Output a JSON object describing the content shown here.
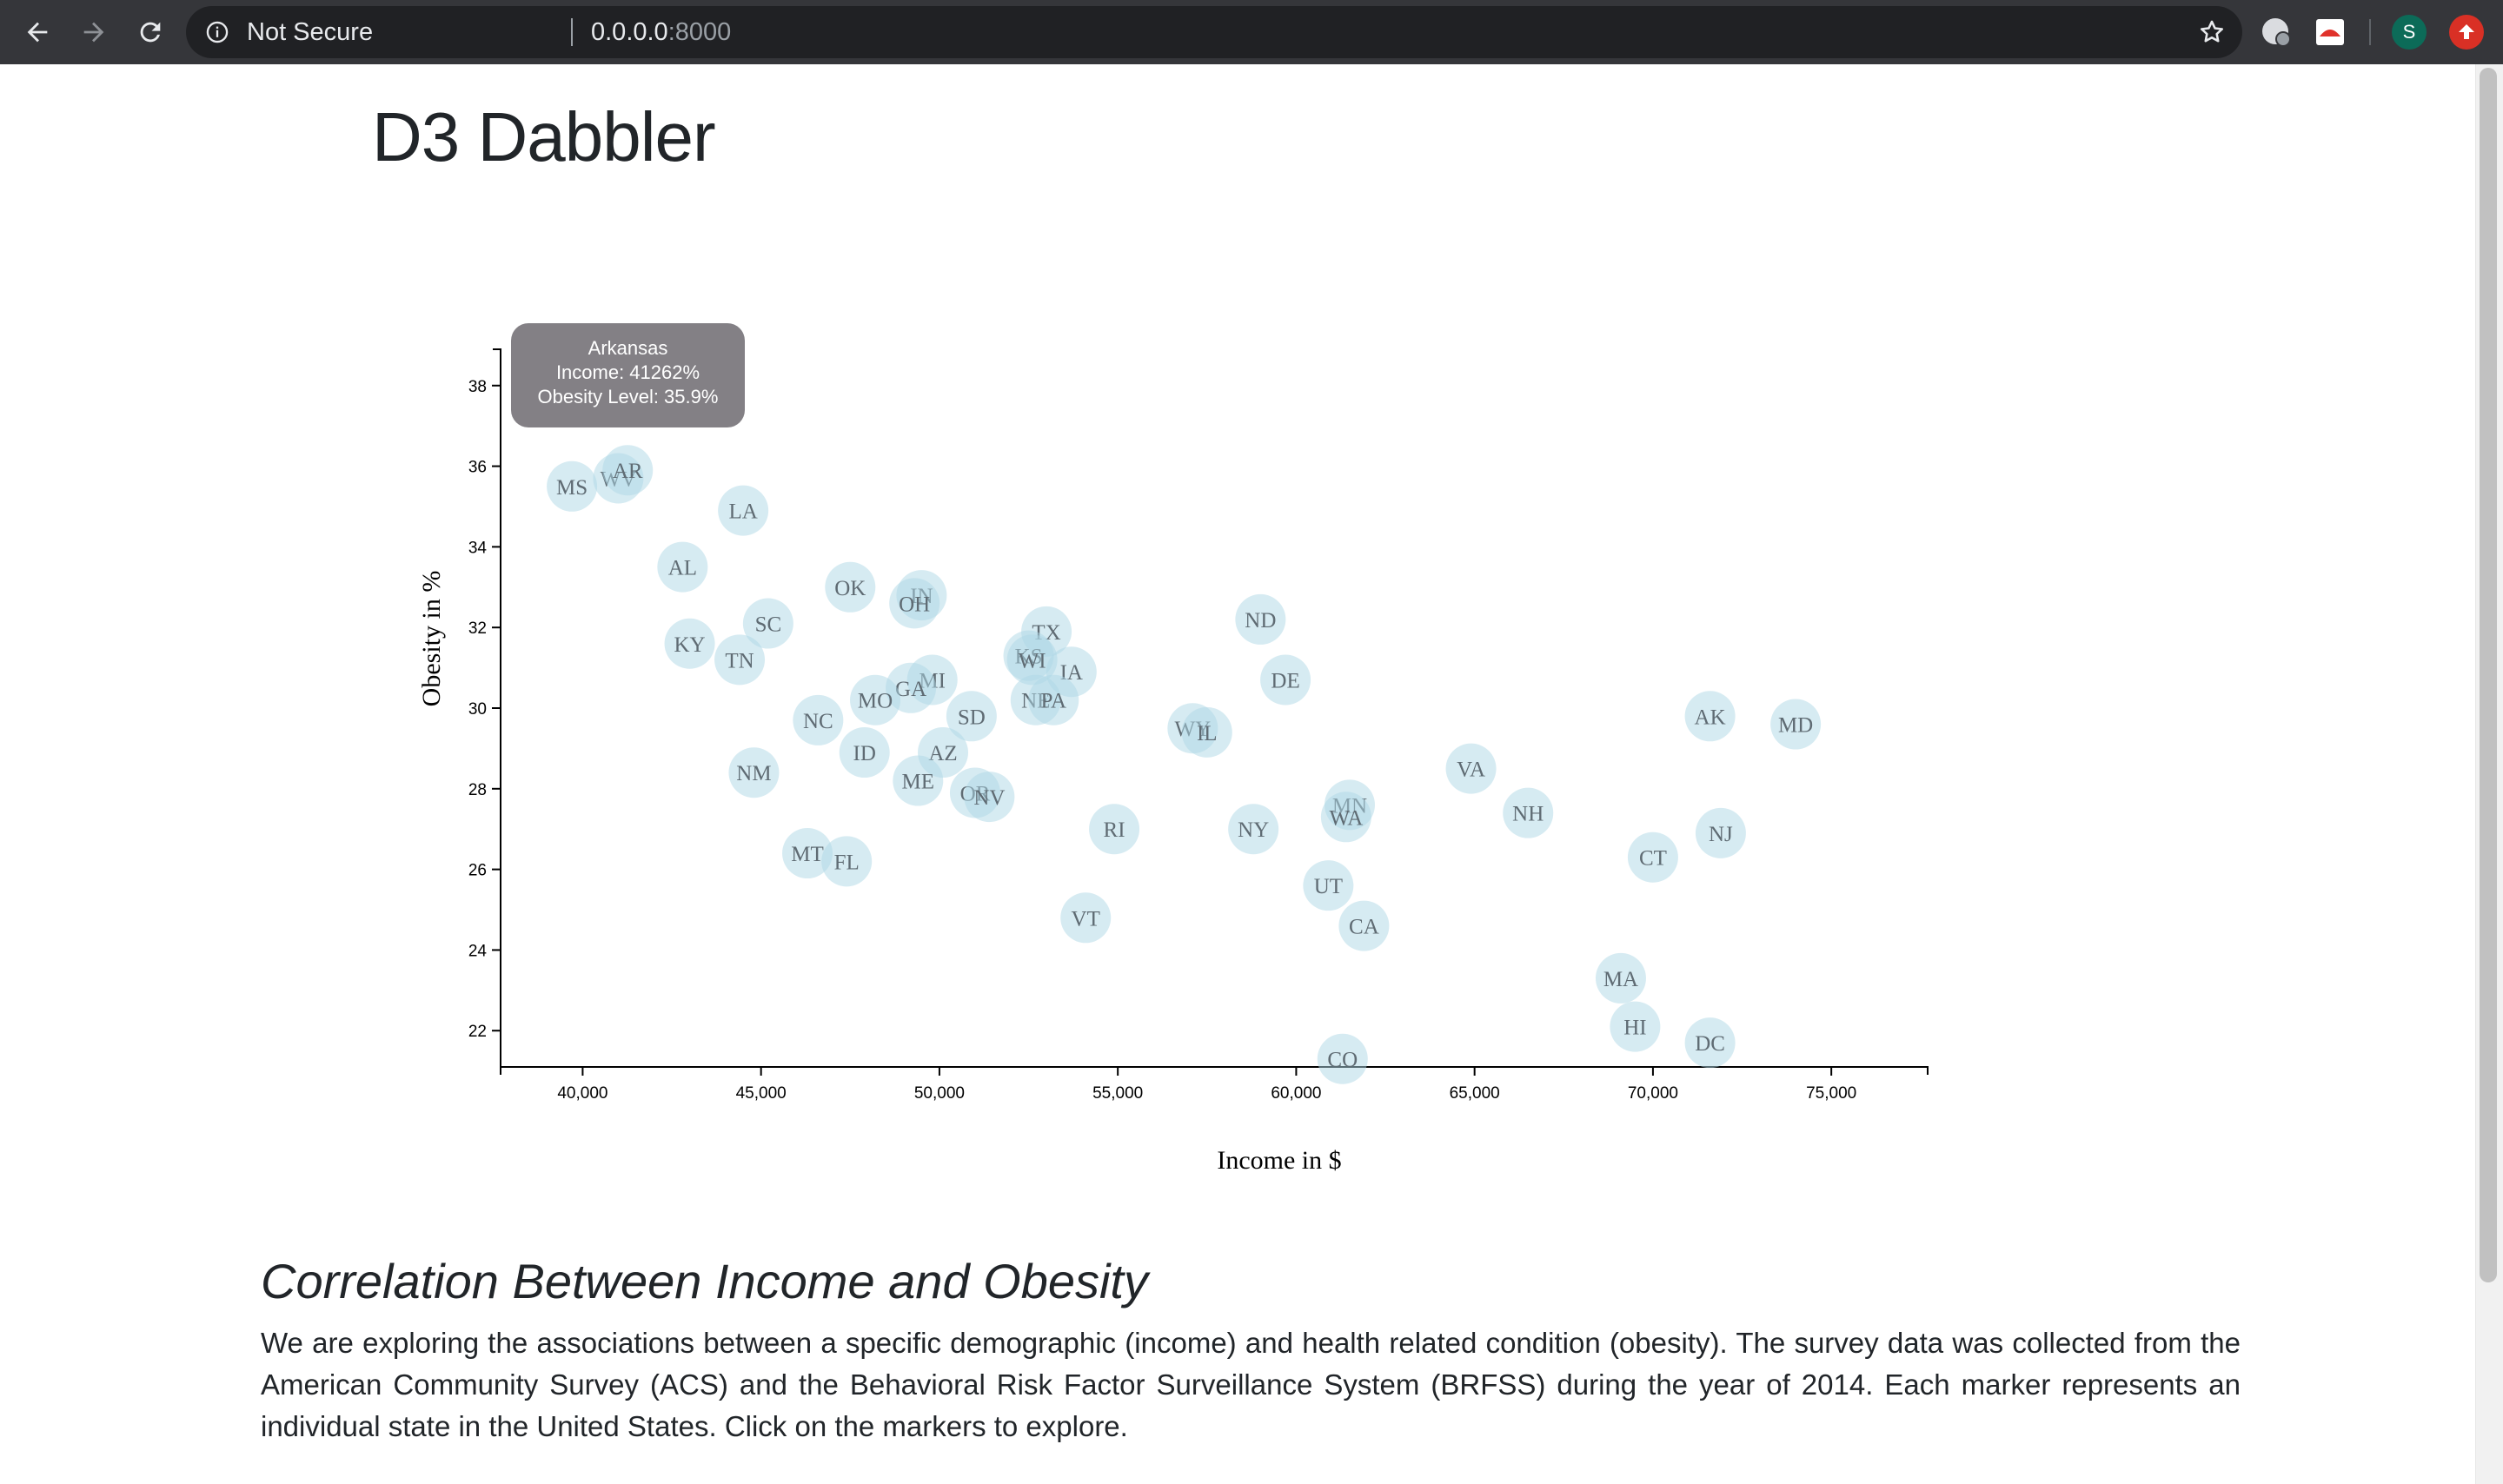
{
  "browser": {
    "security_label": "Not Secure",
    "url_host": "0.0.0.0",
    "url_port": ":8000",
    "profile_initial": "S"
  },
  "page": {
    "title": "D3 Dabbler",
    "section_heading": "Correlation Between Income and Obesity",
    "body_text": "We are exploring the associations between a specific demographic (income) and health related condition (obesity). The survey data was collected from the American Community Survey (ACS) and the Behavioral Risk Factor Surveillance System (BRFSS) during the year of 2014. Each marker represents an individual state in the United States. Click on the markers to explore."
  },
  "tooltip": {
    "state": "Arkansas",
    "income_line": "Income: 41262%",
    "obesity_line": "Obesity Level: 35.9%"
  },
  "chart_data": {
    "type": "scatter",
    "xlabel": "Income in $",
    "ylabel": "Obesity in %",
    "xlim": [
      37700,
      77700
    ],
    "ylim": [
      21.1,
      38.9
    ],
    "x_ticks": [
      40000,
      45000,
      50000,
      55000,
      60000,
      65000,
      70000,
      75000
    ],
    "x_tick_labels": [
      "40,000",
      "45,000",
      "50,000",
      "55,000",
      "60,000",
      "65,000",
      "70,000",
      "75,000"
    ],
    "y_ticks": [
      22,
      24,
      26,
      28,
      30,
      32,
      34,
      36,
      38
    ],
    "y_tick_labels": [
      "22",
      "24",
      "26",
      "28",
      "30",
      "32",
      "34",
      "36",
      "38"
    ],
    "marker_color": "#add8e6",
    "label_color": "#5f6b73",
    "points": [
      {
        "abbr": "MS",
        "income": 39700,
        "obesity": 35.5
      },
      {
        "abbr": "WV",
        "income": 41000,
        "obesity": 35.7
      },
      {
        "abbr": "AR",
        "income": 41262,
        "obesity": 35.9
      },
      {
        "abbr": "LA",
        "income": 44500,
        "obesity": 34.9
      },
      {
        "abbr": "AL",
        "income": 42800,
        "obesity": 33.5
      },
      {
        "abbr": "OK",
        "income": 47500,
        "obesity": 33.0
      },
      {
        "abbr": "IN",
        "income": 49500,
        "obesity": 32.8
      },
      {
        "abbr": "OH",
        "income": 49300,
        "obesity": 32.6
      },
      {
        "abbr": "SC",
        "income": 45200,
        "obesity": 32.1
      },
      {
        "abbr": "KY",
        "income": 43000,
        "obesity": 31.6
      },
      {
        "abbr": "TN",
        "income": 44400,
        "obesity": 31.2
      },
      {
        "abbr": "TX",
        "income": 53000,
        "obesity": 31.9
      },
      {
        "abbr": "KS",
        "income": 52500,
        "obesity": 31.3
      },
      {
        "abbr": "WI",
        "income": 52600,
        "obesity": 31.2
      },
      {
        "abbr": "IA",
        "income": 53700,
        "obesity": 30.9
      },
      {
        "abbr": "ND",
        "income": 59000,
        "obesity": 32.2
      },
      {
        "abbr": "DE",
        "income": 59700,
        "obesity": 30.7
      },
      {
        "abbr": "MI",
        "income": 49800,
        "obesity": 30.7
      },
      {
        "abbr": "GA",
        "income": 49200,
        "obesity": 30.5
      },
      {
        "abbr": "MO",
        "income": 48200,
        "obesity": 30.2
      },
      {
        "abbr": "NE",
        "income": 52700,
        "obesity": 30.2
      },
      {
        "abbr": "PA",
        "income": 53200,
        "obesity": 30.2
      },
      {
        "abbr": "SD",
        "income": 50900,
        "obesity": 29.8
      },
      {
        "abbr": "NC",
        "income": 46600,
        "obesity": 29.7
      },
      {
        "abbr": "WY",
        "income": 57100,
        "obesity": 29.5
      },
      {
        "abbr": "IL",
        "income": 57500,
        "obesity": 29.4
      },
      {
        "abbr": "AK",
        "income": 71600,
        "obesity": 29.8
      },
      {
        "abbr": "MD",
        "income": 74000,
        "obesity": 29.6
      },
      {
        "abbr": "ID",
        "income": 47900,
        "obesity": 28.9
      },
      {
        "abbr": "AZ",
        "income": 50100,
        "obesity": 28.9
      },
      {
        "abbr": "NM",
        "income": 44800,
        "obesity": 28.4
      },
      {
        "abbr": "ME",
        "income": 49400,
        "obesity": 28.2
      },
      {
        "abbr": "OR",
        "income": 51000,
        "obesity": 27.9
      },
      {
        "abbr": "NV",
        "income": 51400,
        "obesity": 27.8
      },
      {
        "abbr": "VA",
        "income": 64900,
        "obesity": 28.5
      },
      {
        "abbr": "NH",
        "income": 66500,
        "obesity": 27.4
      },
      {
        "abbr": "MN",
        "income": 61500,
        "obesity": 27.6
      },
      {
        "abbr": "WA",
        "income": 61400,
        "obesity": 27.3
      },
      {
        "abbr": "RI",
        "income": 54900,
        "obesity": 27.0
      },
      {
        "abbr": "NY",
        "income": 58800,
        "obesity": 27.0
      },
      {
        "abbr": "NJ",
        "income": 71900,
        "obesity": 26.9
      },
      {
        "abbr": "MT",
        "income": 46300,
        "obesity": 26.4
      },
      {
        "abbr": "FL",
        "income": 47400,
        "obesity": 26.2
      },
      {
        "abbr": "CT",
        "income": 70000,
        "obesity": 26.3
      },
      {
        "abbr": "UT",
        "income": 60900,
        "obesity": 25.6
      },
      {
        "abbr": "CA",
        "income": 61900,
        "obesity": 24.6
      },
      {
        "abbr": "VT",
        "income": 54100,
        "obesity": 24.8
      },
      {
        "abbr": "MA",
        "income": 69100,
        "obesity": 23.3
      },
      {
        "abbr": "HI",
        "income": 69500,
        "obesity": 22.1
      },
      {
        "abbr": "DC",
        "income": 71600,
        "obesity": 21.7
      },
      {
        "abbr": "CO",
        "income": 61300,
        "obesity": 21.3
      }
    ]
  }
}
